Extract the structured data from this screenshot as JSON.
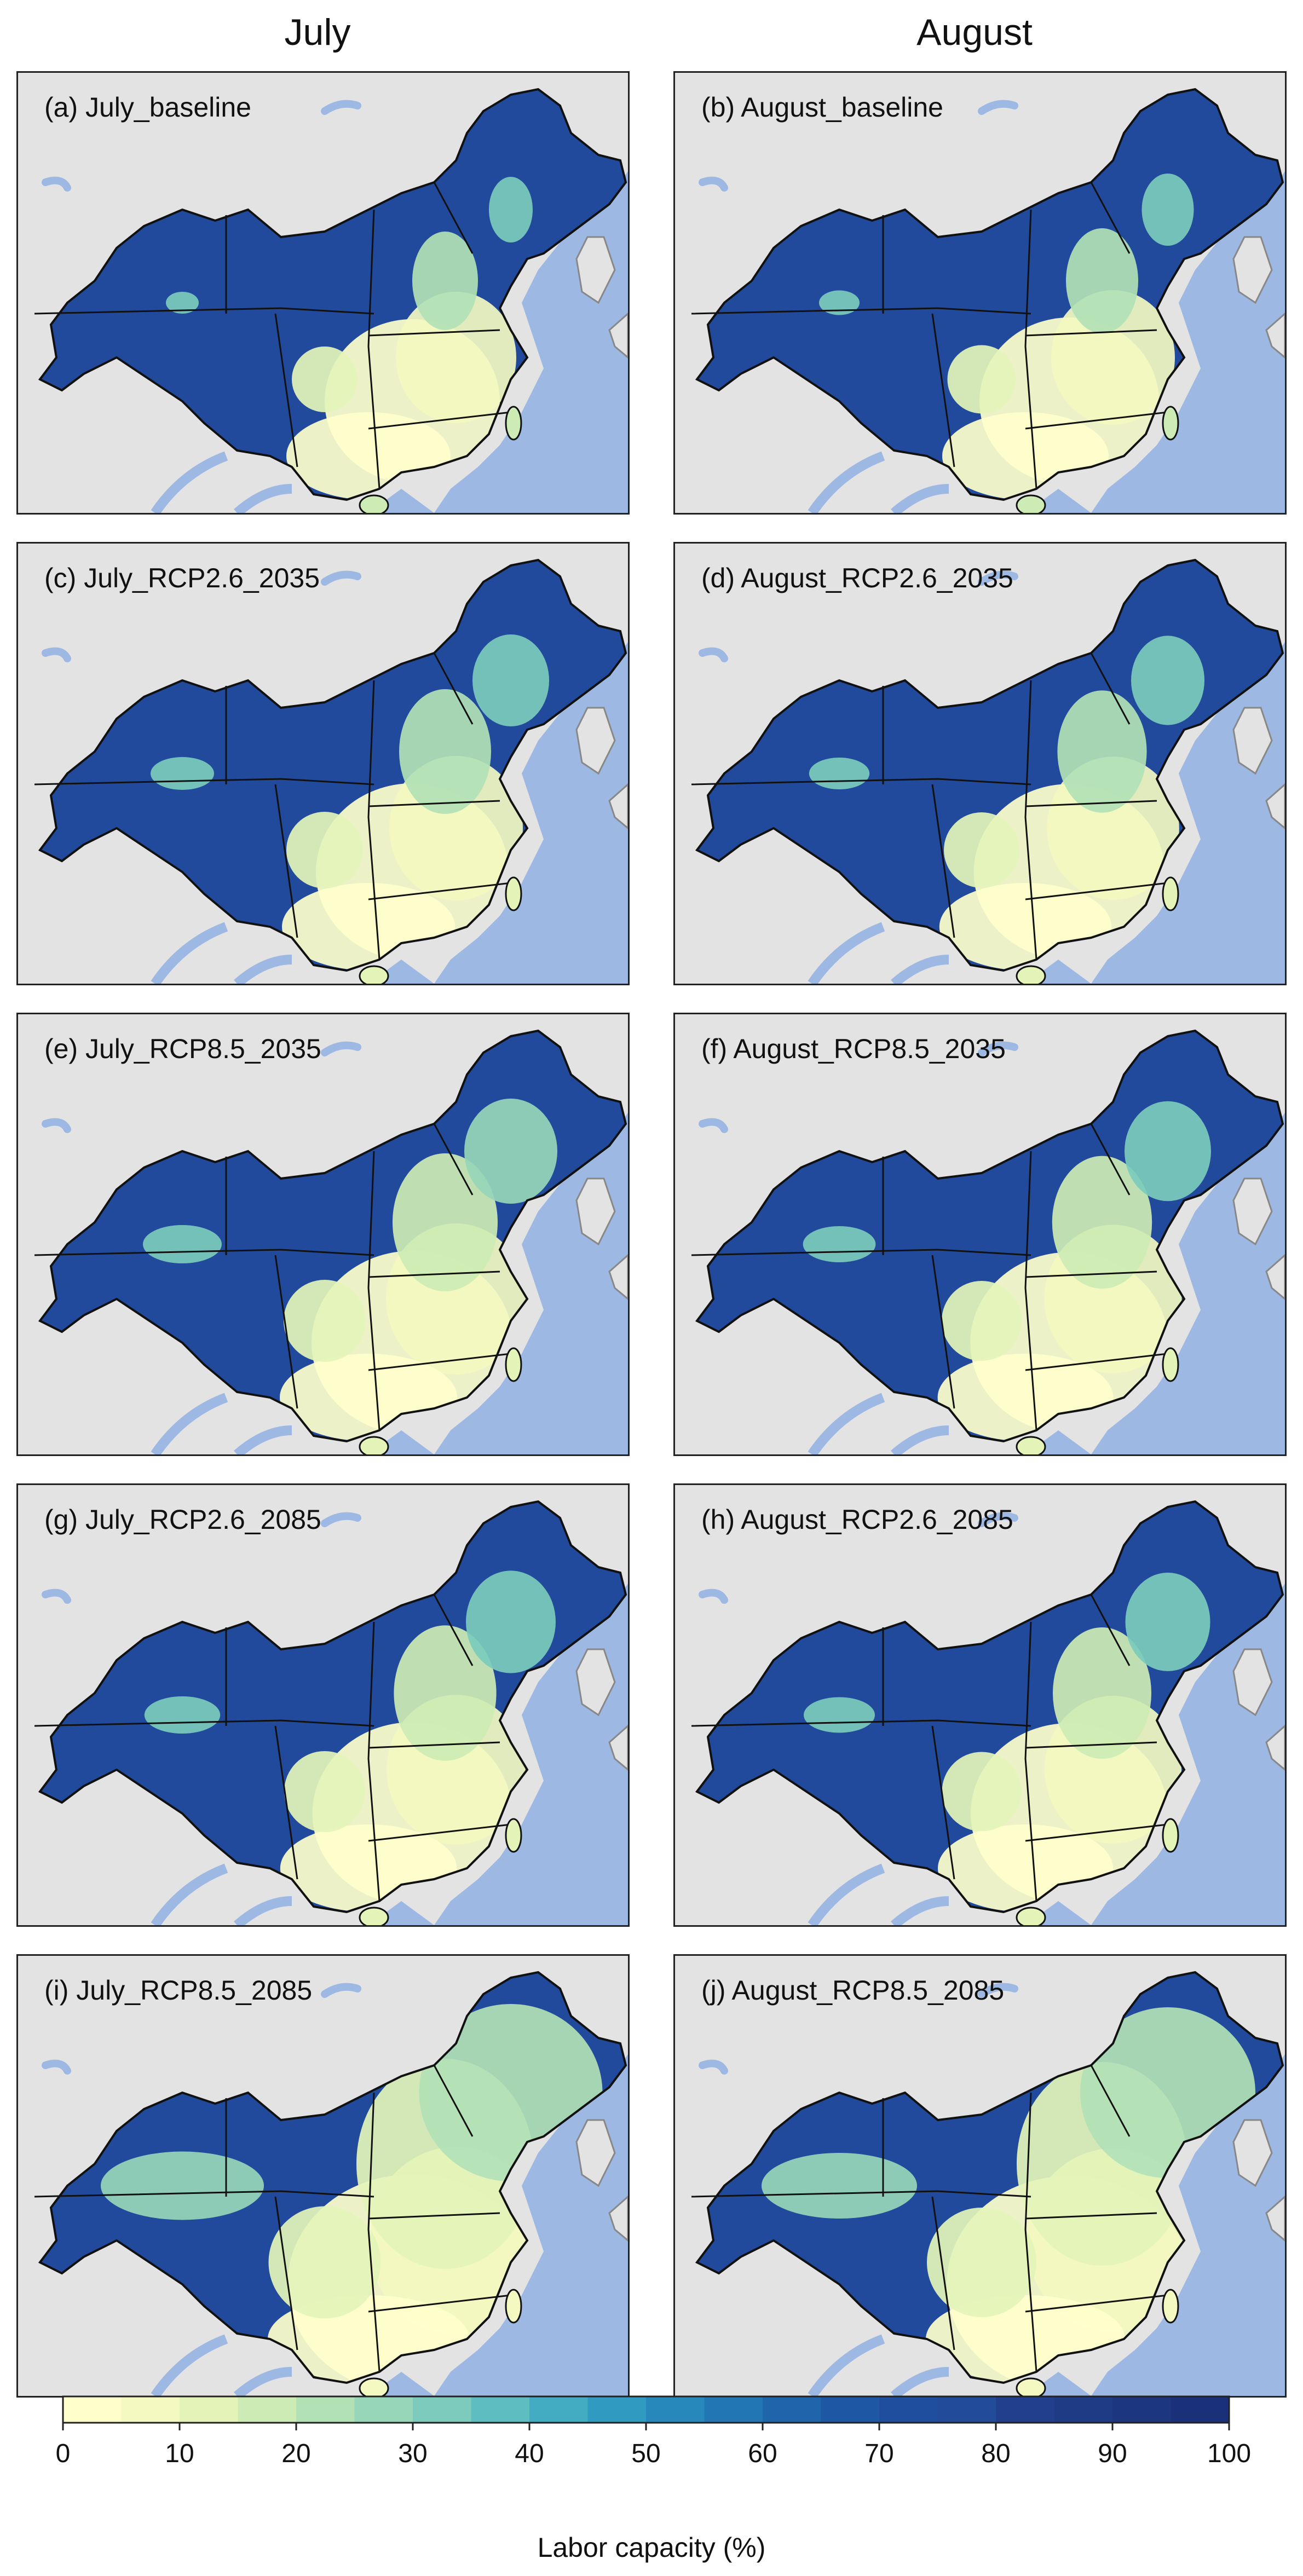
{
  "column_headers": [
    "July",
    "August"
  ],
  "panels": [
    {
      "label": "(a) July_baseline",
      "warmth": 0.0
    },
    {
      "label": "(b) August_baseline",
      "warmth": 0.05
    },
    {
      "label": "(c) July_RCP2.6_2035",
      "warmth": 0.2
    },
    {
      "label": "(d) August_RCP2.6_2035",
      "warmth": 0.18
    },
    {
      "label": "(e) July_RCP8.5_2035",
      "warmth": 0.3
    },
    {
      "label": "(f) August_RCP8.5_2035",
      "warmth": 0.26
    },
    {
      "label": "(g) July_RCP2.6_2085",
      "warmth": 0.28
    },
    {
      "label": "(h) August_RCP2.6_2085",
      "warmth": 0.25
    },
    {
      "label": "(i) July_RCP8.5_2085",
      "warmth": 0.85
    },
    {
      "label": "(j) August_RCP8.5_2085",
      "warmth": 0.8
    }
  ],
  "legend": {
    "title": "Labor capacity (%)",
    "ticks": [
      "0",
      "10",
      "20",
      "30",
      "40",
      "50",
      "60",
      "70",
      "80",
      "90",
      "100"
    ],
    "colors": [
      "#ffffcc",
      "#f3f9c0",
      "#e4f4b8",
      "#cdebb4",
      "#b2e1b6",
      "#97d6b9",
      "#7ccbbc",
      "#5ebdc1",
      "#43acc2",
      "#319ac0",
      "#2788bc",
      "#2276b4",
      "#1f65ab",
      "#1e58a4",
      "#1f4e9e",
      "#224b9a",
      "#213f8c",
      "#1f3b85",
      "#1d3680",
      "#1a317a"
    ]
  },
  "map_colors": {
    "ocean": "#9cb8e3",
    "land": "#e3e3e3",
    "china_low": "#214a9c",
    "border": "#111111"
  }
}
